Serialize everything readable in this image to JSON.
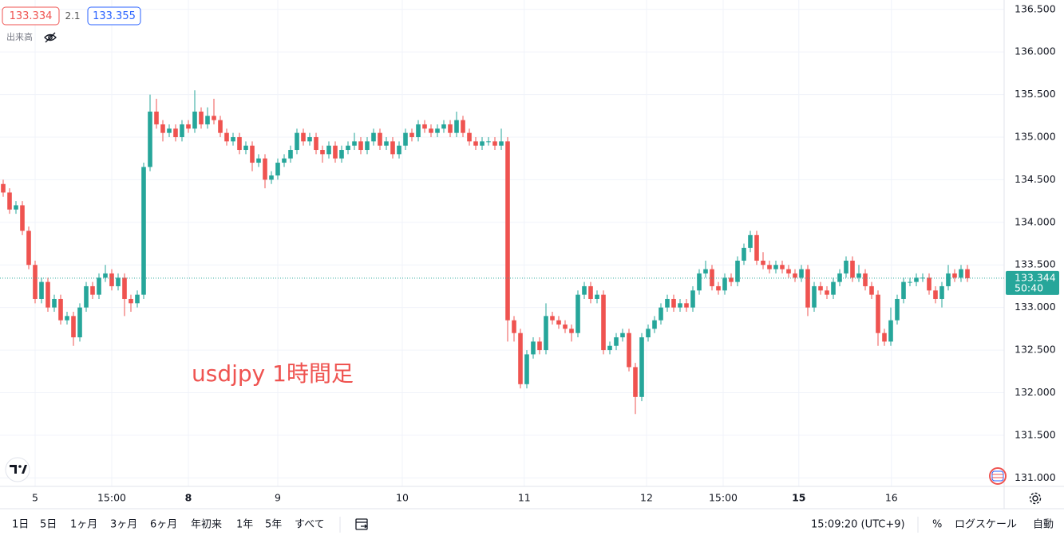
{
  "chart_data": {
    "type": "candlestick",
    "bid": 133.334,
    "spread": 2.1,
    "ask": 133.355,
    "volume_label": "出来高",
    "annotation": "usdjpy 1時間足",
    "last_price": 133.344,
    "countdown": "50:40",
    "up_color": "#26a69a",
    "down_color": "#ef5350",
    "grid": true,
    "xlim": [
      -0.5,
      156.75
    ],
    "xticks": [
      {
        "value": 5,
        "label": "5"
      },
      {
        "value": 17,
        "label": "15:00"
      },
      {
        "value": 29,
        "label": "8",
        "bold": true
      },
      {
        "value": 43,
        "label": "9"
      },
      {
        "value": 62.5,
        "label": "10"
      },
      {
        "value": 81.6,
        "label": "11"
      },
      {
        "value": 100.75,
        "label": "12"
      },
      {
        "value": 112.75,
        "label": "15:00"
      },
      {
        "value": 124.6,
        "label": "15",
        "bold": true
      },
      {
        "value": 139.1,
        "label": "16"
      }
    ],
    "ylim": [
      130.9,
      136.61
    ],
    "yticks": [
      {
        "value": 131,
        "label": "131.000"
      },
      {
        "value": 131.5,
        "label": "131.500"
      },
      {
        "value": 132,
        "label": "132.000"
      },
      {
        "value": 132.5,
        "label": "132.500"
      },
      {
        "value": 133,
        "label": "133.000"
      },
      {
        "value": 133.5,
        "label": "133.500"
      },
      {
        "value": 134,
        "label": "134.000"
      },
      {
        "value": 134.5,
        "label": "134.500"
      },
      {
        "value": 135,
        "label": "135.000"
      },
      {
        "value": 135.5,
        "label": "135.500"
      },
      {
        "value": 136,
        "label": "136.000"
      },
      {
        "value": 136.5,
        "label": "136.500"
      }
    ],
    "open": [
      134.45,
      134.35,
      134.15,
      134.2,
      133.9,
      133.5,
      133.1,
      133.3,
      133.0,
      133.1,
      132.85,
      132.9,
      132.65,
      133.0,
      133.25,
      133.15,
      133.35,
      133.4,
      133.25,
      133.35,
      133.1,
      133.05,
      133.15,
      134.65,
      135.3,
      135.15,
      135.05,
      135.1,
      135.0,
      135.15,
      135.1,
      135.3,
      135.15,
      135.25,
      135.2,
      135.05,
      134.95,
      135.0,
      134.85,
      134.9,
      134.7,
      134.75,
      134.5,
      134.55,
      134.7,
      134.75,
      134.85,
      135.05,
      134.95,
      135.0,
      134.85,
      134.8,
      134.9,
      134.75,
      134.85,
      134.9,
      134.95,
      134.85,
      134.95,
      135.05,
      134.9,
      134.95,
      134.8,
      134.9,
      135.05,
      135.0,
      135.15,
      135.1,
      135.05,
      135.1,
      135.15,
      135.05,
      135.2,
      135.05,
      134.95,
      134.9,
      134.95,
      134.95,
      134.9,
      134.95,
      132.85,
      132.7,
      132.1,
      132.45,
      132.6,
      132.5,
      132.9,
      132.85,
      132.8,
      132.75,
      132.7,
      133.15,
      133.25,
      133.1,
      133.15,
      132.5,
      132.55,
      132.65,
      132.7,
      132.3,
      131.95,
      132.65,
      132.75,
      132.85,
      133.0,
      133.1,
      133.0,
      133.05,
      133.0,
      133.2,
      133.4,
      133.45,
      133.25,
      133.2,
      133.35,
      133.3,
      133.55,
      133.7,
      133.85,
      133.55,
      133.5,
      133.45,
      133.5,
      133.45,
      133.4,
      133.35,
      133.45,
      133.0,
      133.25,
      133.2,
      133.15,
      133.3,
      133.4,
      133.55,
      133.35,
      133.4,
      133.25,
      133.15,
      132.7,
      132.6,
      132.85,
      133.1,
      133.3,
      133.3,
      133.35,
      133.35,
      133.2,
      133.1,
      133.25,
      133.4,
      133.35,
      133.45
    ],
    "high": [
      134.5,
      134.4,
      134.25,
      134.25,
      133.95,
      133.55,
      133.35,
      133.35,
      133.15,
      133.15,
      132.95,
      132.95,
      133.05,
      133.3,
      133.3,
      133.4,
      133.5,
      133.45,
      133.4,
      133.4,
      133.15,
      133.2,
      134.7,
      135.5,
      135.45,
      135.2,
      135.15,
      135.15,
      135.2,
      135.2,
      135.55,
      135.35,
      135.35,
      135.45,
      135.25,
      135.1,
      135.05,
      135.05,
      134.95,
      134.95,
      134.8,
      134.8,
      134.6,
      134.75,
      134.8,
      134.9,
      135.1,
      135.1,
      135.05,
      135.05,
      134.9,
      134.95,
      134.95,
      134.9,
      134.95,
      135.05,
      135.0,
      135.0,
      135.1,
      135.1,
      135.0,
      135.0,
      134.95,
      135.1,
      135.1,
      135.2,
      135.2,
      135.15,
      135.15,
      135.2,
      135.2,
      135.3,
      135.25,
      135.1,
      135.0,
      135.0,
      135.0,
      135.0,
      135.1,
      135.0,
      132.9,
      132.75,
      132.5,
      132.65,
      132.65,
      133.05,
      132.95,
      132.9,
      132.85,
      132.8,
      133.2,
      133.3,
      133.3,
      133.2,
      133.2,
      132.6,
      132.7,
      132.75,
      132.75,
      132.35,
      132.7,
      132.8,
      132.9,
      133.05,
      133.15,
      133.15,
      133.1,
      133.1,
      133.25,
      133.45,
      133.55,
      133.5,
      133.3,
      133.4,
      133.4,
      133.6,
      133.75,
      133.9,
      133.9,
      133.65,
      133.55,
      133.55,
      133.55,
      133.5,
      133.45,
      133.5,
      133.5,
      133.3,
      133.3,
      133.25,
      133.35,
      133.45,
      133.6,
      133.6,
      133.5,
      133.45,
      133.3,
      133.2,
      132.75,
      133.0,
      133.15,
      133.35,
      133.35,
      133.4,
      133.4,
      133.4,
      133.25,
      133.3,
      133.5,
      133.45,
      133.5,
      133.5
    ],
    "low": [
      134.3,
      134.1,
      134.1,
      133.85,
      133.45,
      133.05,
      133.05,
      132.95,
      132.95,
      132.8,
      132.8,
      132.55,
      132.6,
      132.95,
      133.1,
      133.1,
      133.3,
      133.2,
      133.2,
      132.9,
      132.95,
      133.0,
      133.1,
      134.6,
      135.1,
      134.95,
      135.0,
      134.95,
      134.95,
      135.05,
      135.05,
      135.1,
      135.1,
      135.15,
      135.0,
      134.9,
      134.9,
      134.8,
      134.8,
      134.6,
      134.65,
      134.4,
      134.45,
      134.5,
      134.65,
      134.7,
      134.8,
      134.9,
      134.9,
      134.8,
      134.7,
      134.75,
      134.7,
      134.7,
      134.8,
      134.85,
      134.8,
      134.8,
      134.9,
      134.85,
      134.85,
      134.75,
      134.75,
      134.85,
      134.95,
      134.95,
      135.05,
      135.0,
      135.0,
      135.05,
      135.0,
      135.0,
      135.0,
      134.9,
      134.85,
      134.85,
      134.9,
      134.85,
      134.85,
      132.6,
      132.6,
      132.05,
      132.05,
      132.4,
      132.45,
      132.45,
      132.8,
      132.75,
      132.7,
      132.6,
      132.65,
      133.1,
      133.05,
      133.05,
      132.45,
      132.45,
      132.5,
      132.6,
      132.25,
      131.75,
      131.9,
      132.6,
      132.7,
      132.8,
      132.95,
      132.95,
      132.95,
      132.95,
      132.95,
      133.15,
      133.35,
      133.2,
      133.15,
      133.15,
      133.25,
      133.25,
      133.5,
      133.65,
      133.5,
      133.45,
      133.4,
      133.4,
      133.4,
      133.35,
      133.3,
      133.3,
      132.9,
      132.95,
      133.15,
      133.1,
      133.1,
      133.25,
      133.35,
      133.3,
      133.3,
      133.2,
      133.1,
      132.55,
      132.55,
      132.55,
      132.8,
      133.05,
      133.25,
      133.25,
      133.3,
      133.15,
      133.05,
      133.0,
      133.2,
      133.3,
      133.3,
      133.3
    ],
    "close": [
      134.35,
      134.15,
      134.2,
      133.9,
      133.5,
      133.1,
      133.3,
      133.0,
      133.1,
      132.85,
      132.9,
      132.65,
      133.0,
      133.25,
      133.15,
      133.35,
      133.4,
      133.25,
      133.35,
      133.1,
      133.05,
      133.15,
      134.65,
      135.3,
      135.15,
      135.05,
      135.1,
      135.0,
      135.15,
      135.1,
      135.3,
      135.15,
      135.25,
      135.2,
      135.05,
      134.95,
      135.0,
      134.85,
      134.9,
      134.7,
      134.75,
      134.5,
      134.55,
      134.7,
      134.75,
      134.85,
      135.05,
      134.95,
      135.0,
      134.85,
      134.8,
      134.9,
      134.75,
      134.85,
      134.9,
      134.95,
      134.85,
      134.95,
      135.05,
      134.9,
      134.95,
      134.8,
      134.9,
      135.05,
      135.0,
      135.15,
      135.1,
      135.05,
      135.1,
      135.15,
      135.05,
      135.2,
      135.05,
      134.95,
      134.9,
      134.95,
      134.95,
      134.9,
      134.95,
      132.85,
      132.7,
      132.1,
      132.45,
      132.6,
      132.5,
      132.9,
      132.85,
      132.8,
      132.75,
      132.7,
      133.15,
      133.25,
      133.1,
      133.15,
      132.5,
      132.55,
      132.65,
      132.7,
      132.3,
      131.95,
      132.65,
      132.75,
      132.85,
      133.0,
      133.1,
      133.0,
      133.05,
      133.0,
      133.2,
      133.4,
      133.45,
      133.25,
      133.2,
      133.35,
      133.3,
      133.55,
      133.7,
      133.85,
      133.55,
      133.5,
      133.45,
      133.5,
      133.45,
      133.4,
      133.35,
      133.45,
      133.0,
      133.25,
      133.2,
      133.15,
      133.3,
      133.4,
      133.55,
      133.35,
      133.4,
      133.25,
      133.15,
      132.7,
      132.6,
      132.85,
      133.1,
      133.3,
      133.3,
      133.35,
      133.35,
      133.2,
      133.1,
      133.25,
      133.4,
      133.35,
      133.45,
      133.344
    ]
  },
  "toolbar": {
    "ranges": [
      "1日",
      "5日",
      "1ヶ月",
      "3ヶ月",
      "6ヶ月",
      "年初来",
      "1年",
      "5年",
      "すべて"
    ],
    "time": "15:09:20 (UTC+9)",
    "percent": "%",
    "log_scale": "ログスケール",
    "auto": "自動"
  }
}
